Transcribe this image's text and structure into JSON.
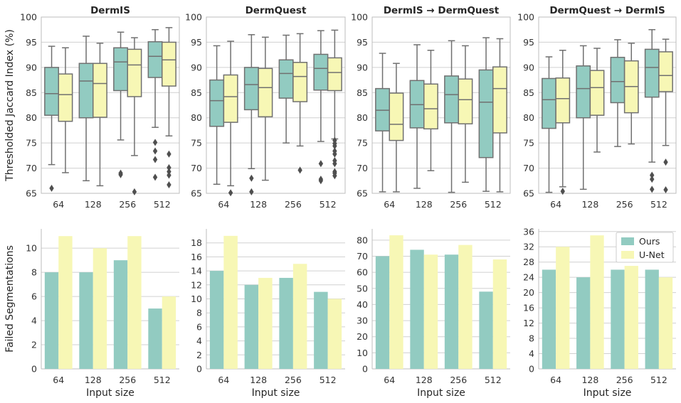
{
  "colors": {
    "ours": "#92cbc1",
    "unet": "#f7f7b5",
    "edge": "#707070",
    "grid": "#d0d0d0",
    "axis": "#bcbcbc"
  },
  "chart_data": [
    {
      "type": "box",
      "title": "DermIS",
      "ylabel": "Thresholded Jaccard Index (%)",
      "xlabel": "",
      "ylim": [
        65,
        100
      ],
      "yticks": [
        65,
        70,
        75,
        80,
        85,
        90,
        95,
        100
      ],
      "categories": [
        "64",
        "128",
        "256",
        "512"
      ],
      "series": [
        {
          "name": "Ours",
          "boxes": [
            {
              "whislo": 70.7,
              "q1": 80.5,
              "med": 84.8,
              "q3": 90.0,
              "whishi": 94.2,
              "fliers": [
                66.0
              ]
            },
            {
              "whislo": 67.5,
              "q1": 80.0,
              "med": 87.3,
              "q3": 90.8,
              "whishi": 96.2,
              "fliers": []
            },
            {
              "whislo": 75.6,
              "q1": 85.4,
              "med": 91.1,
              "q3": 93.9,
              "whishi": 97.0,
              "fliers": [
                68.7,
                69.0
              ]
            },
            {
              "whislo": 78.1,
              "q1": 88.0,
              "med": 92.2,
              "q3": 95.1,
              "whishi": 97.5,
              "fliers": [
                75.1,
                73.4,
                71.7,
                68.2
              ]
            }
          ]
        },
        {
          "name": "U-Net",
          "boxes": [
            {
              "whislo": 69.1,
              "q1": 79.3,
              "med": 84.6,
              "q3": 88.7,
              "whishi": 93.9,
              "fliers": []
            },
            {
              "whislo": 66.5,
              "q1": 80.1,
              "med": 86.8,
              "q3": 90.8,
              "whishi": 94.8,
              "fliers": []
            },
            {
              "whislo": 72.5,
              "q1": 84.2,
              "med": 90.5,
              "q3": 93.6,
              "whishi": 95.9,
              "fliers": [
                65.3
              ]
            },
            {
              "whislo": 76.4,
              "q1": 86.3,
              "med": 91.5,
              "q3": 95.0,
              "whishi": 97.9,
              "fliers": [
                72.8,
                70.1,
                69.3,
                68.6,
                66.7
              ]
            }
          ]
        }
      ]
    },
    {
      "type": "box",
      "title": "DermQuest",
      "ylabel": "",
      "xlabel": "",
      "ylim": [
        65,
        100
      ],
      "yticks": [
        65,
        70,
        75,
        80,
        85,
        90,
        95,
        100
      ],
      "categories": [
        "64",
        "128",
        "256",
        "512"
      ],
      "series": [
        {
          "name": "Ours",
          "boxes": [
            {
              "whislo": 66.8,
              "q1": 78.3,
              "med": 83.4,
              "q3": 87.5,
              "whishi": 94.3,
              "fliers": []
            },
            {
              "whislo": 69.9,
              "q1": 81.6,
              "med": 86.6,
              "q3": 90.0,
              "whishi": 96.5,
              "fliers": [
                68.0,
                65.3
              ]
            },
            {
              "whislo": 75.0,
              "q1": 83.9,
              "med": 88.8,
              "q3": 91.5,
              "whishi": 96.4,
              "fliers": []
            },
            {
              "whislo": 75.3,
              "q1": 85.5,
              "med": 89.8,
              "q3": 92.6,
              "whishi": 97.3,
              "fliers": [
                70.9,
                67.8,
                67.5
              ]
            }
          ]
        },
        {
          "name": "U-Net",
          "boxes": [
            {
              "whislo": 66.5,
              "q1": 79.1,
              "med": 84.2,
              "q3": 88.5,
              "whishi": 95.2,
              "fliers": [
                65.1
              ]
            },
            {
              "whislo": 67.6,
              "q1": 80.2,
              "med": 86.0,
              "q3": 89.8,
              "whishi": 96.0,
              "fliers": []
            },
            {
              "whislo": 74.4,
              "q1": 83.2,
              "med": 88.2,
              "q3": 91.0,
              "whishi": 96.7,
              "fliers": [
                69.6
              ]
            },
            {
              "whislo": 75.8,
              "q1": 85.4,
              "med": 89.0,
              "q3": 91.9,
              "whishi": 97.4,
              "fliers": [
                75.5,
                74.9,
                74.4,
                73.4,
                72.8,
                71.5,
                70.9,
                69.3,
                69.0,
                68.5
              ]
            }
          ]
        }
      ]
    },
    {
      "type": "box",
      "title": "DermIS → DermQuest",
      "ylabel": "",
      "xlabel": "",
      "ylim": [
        65,
        100
      ],
      "yticks": [
        65,
        70,
        75,
        80,
        85,
        90,
        95,
        100
      ],
      "categories": [
        "64",
        "128",
        "256",
        "512"
      ],
      "series": [
        {
          "name": "Ours",
          "boxes": [
            {
              "whislo": 65.3,
              "q1": 77.4,
              "med": 81.5,
              "q3": 85.8,
              "whishi": 92.8,
              "fliers": []
            },
            {
              "whislo": 66.0,
              "q1": 78.0,
              "med": 82.6,
              "q3": 87.4,
              "whishi": 94.5,
              "fliers": []
            },
            {
              "whislo": 65.2,
              "q1": 79.0,
              "med": 84.6,
              "q3": 88.3,
              "whishi": 95.3,
              "fliers": []
            },
            {
              "whislo": 65.4,
              "q1": 72.1,
              "med": 83.1,
              "q3": 89.5,
              "whishi": 95.9,
              "fliers": []
            }
          ]
        },
        {
          "name": "U-Net",
          "boxes": [
            {
              "whislo": 65.3,
              "q1": 75.5,
              "med": 78.7,
              "q3": 84.9,
              "whishi": 90.8,
              "fliers": []
            },
            {
              "whislo": 69.5,
              "q1": 77.8,
              "med": 81.8,
              "q3": 86.7,
              "whishi": 93.4,
              "fliers": []
            },
            {
              "whislo": 67.2,
              "q1": 78.8,
              "med": 83.6,
              "q3": 87.7,
              "whishi": 94.3,
              "fliers": []
            },
            {
              "whislo": 65.3,
              "q1": 77.0,
              "med": 85.8,
              "q3": 90.1,
              "whishi": 95.7,
              "fliers": []
            }
          ]
        }
      ]
    },
    {
      "type": "box",
      "title": "DermQuest → DermIS",
      "ylabel": "",
      "xlabel": "",
      "ylim": [
        65,
        100
      ],
      "yticks": [
        65,
        70,
        75,
        80,
        85,
        90,
        95,
        100
      ],
      "categories": [
        "64",
        "128",
        "256",
        "512"
      ],
      "series": [
        {
          "name": "Ours",
          "boxes": [
            {
              "whislo": 65.2,
              "q1": 77.9,
              "med": 83.6,
              "q3": 87.8,
              "whishi": 92.1,
              "fliers": []
            },
            {
              "whislo": 65.8,
              "q1": 80.0,
              "med": 85.8,
              "q3": 90.3,
              "whishi": 94.3,
              "fliers": []
            },
            {
              "whislo": 74.3,
              "q1": 83.0,
              "med": 87.2,
              "q3": 92.0,
              "whishi": 95.5,
              "fliers": []
            },
            {
              "whislo": 71.2,
              "q1": 84.1,
              "med": 90.0,
              "q3": 93.6,
              "whishi": 97.5,
              "fliers": [
                68.6,
                67.8,
                65.8
              ]
            }
          ]
        },
        {
          "name": "U-Net",
          "boxes": [
            {
              "whislo": 66.3,
              "q1": 79.0,
              "med": 83.8,
              "q3": 87.9,
              "whishi": 93.4,
              "fliers": [
                65.4
              ]
            },
            {
              "whislo": 73.2,
              "q1": 80.5,
              "med": 86.0,
              "q3": 89.4,
              "whishi": 93.8,
              "fliers": []
            },
            {
              "whislo": 74.8,
              "q1": 81.0,
              "med": 86.2,
              "q3": 91.3,
              "whishi": 94.8,
              "fliers": []
            },
            {
              "whislo": 74.5,
              "q1": 85.2,
              "med": 88.4,
              "q3": 93.1,
              "whishi": 95.6,
              "fliers": [
                71.2,
                65.7
              ]
            }
          ]
        }
      ]
    },
    {
      "type": "bar",
      "ylabel": "Failed Segmentations",
      "xlabel": "Input size",
      "ylim": [
        0,
        11.6
      ],
      "yticks": [
        0,
        2,
        4,
        6,
        8,
        10
      ],
      "categories": [
        "64",
        "128",
        "256",
        "512"
      ],
      "series": [
        {
          "name": "Ours",
          "values": [
            8,
            8,
            9,
            5
          ]
        },
        {
          "name": "U-Net",
          "values": [
            11,
            10,
            11,
            6
          ]
        }
      ]
    },
    {
      "type": "bar",
      "ylabel": "",
      "xlabel": "Input size",
      "ylim": [
        0,
        20
      ],
      "yticks": [
        0,
        2,
        4,
        6,
        8,
        10,
        12,
        14,
        16,
        18
      ],
      "categories": [
        "64",
        "128",
        "256",
        "512"
      ],
      "series": [
        {
          "name": "Ours",
          "values": [
            14,
            12,
            13,
            11
          ]
        },
        {
          "name": "U-Net",
          "values": [
            19,
            13,
            15,
            10
          ]
        }
      ]
    },
    {
      "type": "bar",
      "ylabel": "",
      "xlabel": "Input size",
      "ylim": [
        0,
        87
      ],
      "yticks": [
        0,
        10,
        20,
        30,
        40,
        50,
        60,
        70,
        80
      ],
      "categories": [
        "64",
        "128",
        "256",
        "512"
      ],
      "series": [
        {
          "name": "Ours",
          "values": [
            70,
            74,
            71,
            48
          ]
        },
        {
          "name": "U-Net",
          "values": [
            83,
            71,
            77,
            68
          ]
        }
      ]
    },
    {
      "type": "bar",
      "ylabel": "",
      "xlabel": "Input size",
      "ylim": [
        0,
        36.7
      ],
      "yticks": [
        0,
        4,
        8,
        12,
        16,
        20,
        24,
        28,
        32,
        36
      ],
      "categories": [
        "64",
        "128",
        "256",
        "512"
      ],
      "series": [
        {
          "name": "Ours",
          "values": [
            26,
            24,
            26,
            26
          ]
        },
        {
          "name": "U-Net",
          "values": [
            32,
            35,
            27,
            24
          ]
        }
      ],
      "legend": {
        "position": "top-right",
        "entries": [
          "Ours",
          "U-Net"
        ]
      }
    }
  ]
}
